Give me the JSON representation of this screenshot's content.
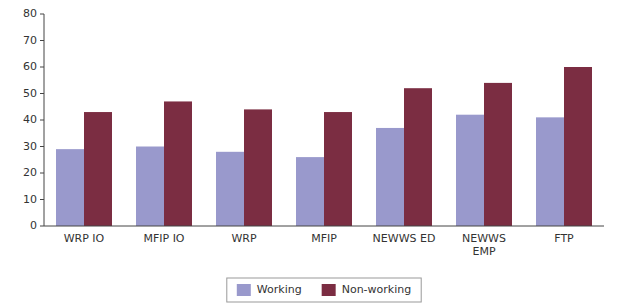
{
  "chart_data": {
    "type": "bar",
    "categories": [
      "WRP IO",
      "MFIP IO",
      "WRP",
      "MFIP",
      "NEWWS ED",
      "NEWWS\nEMP",
      "FTP"
    ],
    "series": [
      {
        "name": "Working",
        "color": "#9999cc",
        "values": [
          29,
          30,
          28,
          26,
          37,
          42,
          41
        ]
      },
      {
        "name": "Non-working",
        "color": "#7b2d42",
        "values": [
          43,
          47,
          44,
          43,
          52,
          54,
          60
        ]
      }
    ],
    "ylim": [
      0,
      80
    ],
    "yticks": [
      0,
      10,
      20,
      30,
      40,
      50,
      60,
      70,
      80
    ],
    "grid": false,
    "legend": "bottom"
  }
}
